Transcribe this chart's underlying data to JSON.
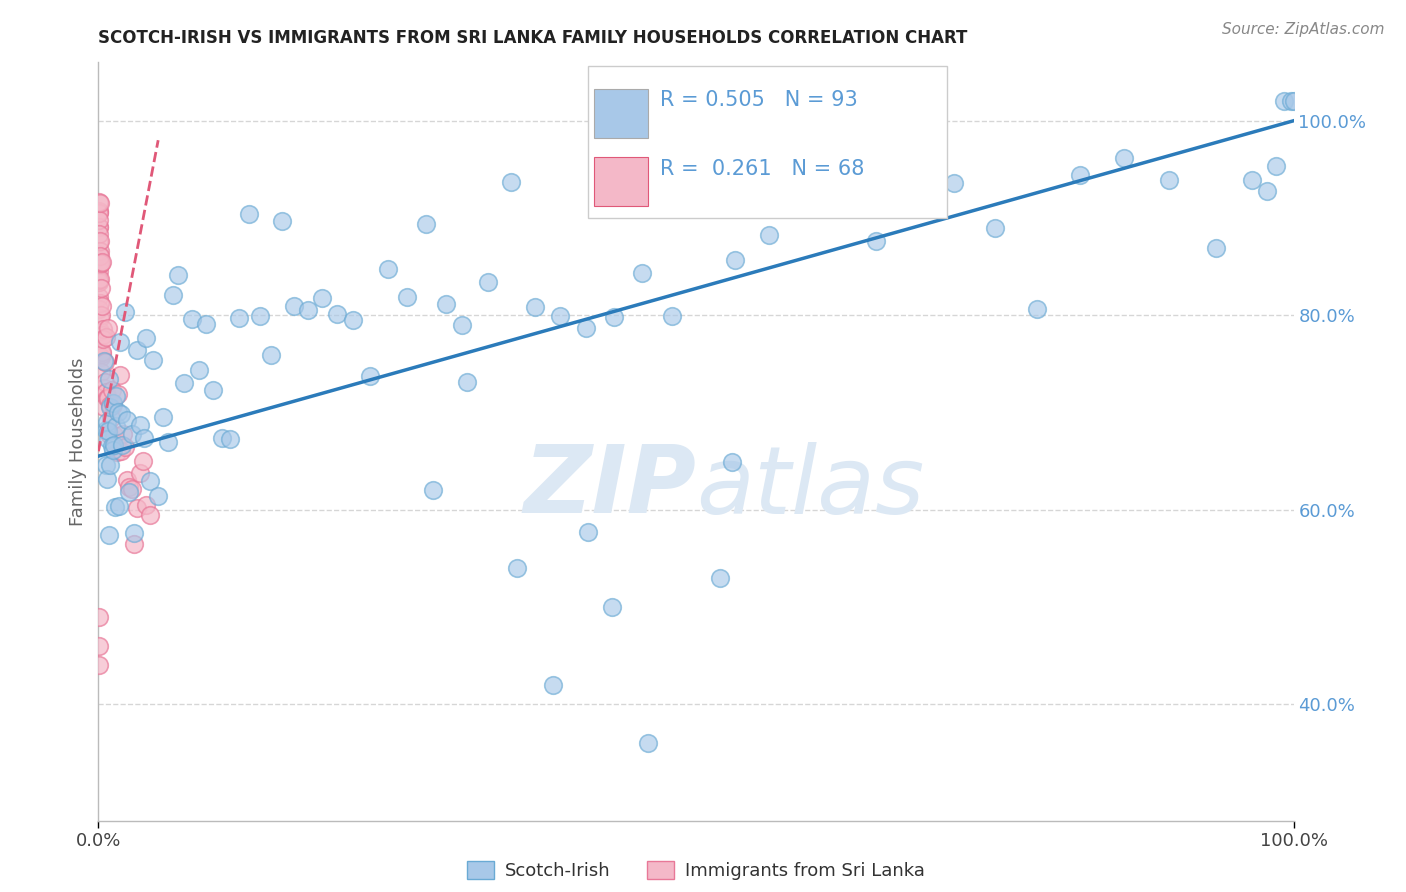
{
  "title": "SCOTCH-IRISH VS IMMIGRANTS FROM SRI LANKA FAMILY HOUSEHOLDS CORRELATION CHART",
  "source": "Source: ZipAtlas.com",
  "ylabel": "Family Households",
  "legend_entries": [
    "Scotch-Irish",
    "Immigrants from Sri Lanka"
  ],
  "legend_r_n": [
    {
      "R": "0.505",
      "N": "93"
    },
    {
      "R": "0.261",
      "N": "68"
    }
  ],
  "blue_color": "#a8c8e8",
  "blue_edge_color": "#6aaad4",
  "blue_line_color": "#2b7bba",
  "pink_color": "#f4b8c8",
  "pink_edge_color": "#e87898",
  "pink_line_color": "#e05878",
  "watermark_color": "#dce8f4",
  "grid_color": "#cccccc",
  "right_tick_color": "#5b9bd5",
  "title_color": "#222222",
  "source_color": "#888888",
  "ylabel_color": "#666666",
  "xtick_color": "#444444",
  "blue_x": [
    0.005,
    0.006,
    0.006,
    0.007,
    0.007,
    0.008,
    0.008,
    0.009,
    0.009,
    0.01,
    0.01,
    0.011,
    0.012,
    0.012,
    0.013,
    0.014,
    0.015,
    0.015,
    0.016,
    0.017,
    0.018,
    0.019,
    0.02,
    0.022,
    0.024,
    0.026,
    0.028,
    0.03,
    0.032,
    0.035,
    0.038,
    0.04,
    0.043,
    0.046,
    0.05,
    0.054,
    0.058,
    0.062,
    0.067,
    0.072,
    0.078,
    0.084,
    0.09,
    0.096,
    0.103,
    0.11,
    0.118,
    0.126,
    0.135,
    0.144,
    0.154,
    0.164,
    0.175,
    0.187,
    0.2,
    0.213,
    0.227,
    0.242,
    0.258,
    0.274,
    0.291,
    0.308,
    0.326,
    0.345,
    0.365,
    0.386,
    0.408,
    0.431,
    0.455,
    0.48,
    0.506,
    0.533,
    0.561,
    0.59,
    0.62,
    0.651,
    0.683,
    0.716,
    0.75,
    0.785,
    0.821,
    0.858,
    0.896,
    0.935,
    0.965,
    0.978,
    0.985,
    0.992,
    0.998,
    1.0,
    0.304,
    0.41,
    0.53
  ],
  "blue_y": [
    0.66,
    0.672,
    0.68,
    0.668,
    0.675,
    0.673,
    0.681,
    0.67,
    0.678,
    0.672,
    0.68,
    0.675,
    0.682,
    0.676,
    0.68,
    0.683,
    0.686,
    0.679,
    0.685,
    0.688,
    0.682,
    0.69,
    0.688,
    0.692,
    0.695,
    0.698,
    0.7,
    0.702,
    0.706,
    0.71,
    0.714,
    0.718,
    0.72,
    0.724,
    0.728,
    0.732,
    0.736,
    0.74,
    0.744,
    0.748,
    0.75,
    0.754,
    0.76,
    0.764,
    0.768,
    0.772,
    0.776,
    0.78,
    0.784,
    0.788,
    0.792,
    0.796,
    0.8,
    0.804,
    0.808,
    0.812,
    0.816,
    0.82,
    0.824,
    0.828,
    0.832,
    0.836,
    0.84,
    0.844,
    0.83,
    0.848,
    0.852,
    0.856,
    0.86,
    0.864,
    0.868,
    0.872,
    0.876,
    0.88,
    0.884,
    0.888,
    0.892,
    0.896,
    0.9,
    0.904,
    0.908,
    0.912,
    0.916,
    0.92,
    0.95,
    0.96,
    0.97,
    0.98,
    0.99,
    1.0,
    0.76,
    0.54,
    0.65
  ],
  "pink_x": [
    0.0003,
    0.0003,
    0.0004,
    0.0004,
    0.0004,
    0.0005,
    0.0005,
    0.0005,
    0.0006,
    0.0006,
    0.0007,
    0.0007,
    0.0008,
    0.0008,
    0.0009,
    0.0009,
    0.001,
    0.001,
    0.0011,
    0.0012,
    0.0013,
    0.0014,
    0.0015,
    0.0016,
    0.0017,
    0.0018,
    0.0019,
    0.002,
    0.0022,
    0.0024,
    0.0026,
    0.0028,
    0.003,
    0.0033,
    0.0036,
    0.0039,
    0.0042,
    0.0045,
    0.0049,
    0.0053,
    0.0057,
    0.0062,
    0.0067,
    0.0072,
    0.0078,
    0.0084,
    0.0091,
    0.0098,
    0.0106,
    0.0114,
    0.0123,
    0.0133,
    0.0143,
    0.0154,
    0.0166,
    0.0179,
    0.0193,
    0.0208,
    0.0224,
    0.0241,
    0.026,
    0.028,
    0.0301,
    0.0324,
    0.0348,
    0.0374,
    0.0402,
    0.0432
  ],
  "pink_y": [
    0.87,
    0.88,
    0.865,
    0.875,
    0.86,
    0.872,
    0.858,
    0.868,
    0.865,
    0.855,
    0.862,
    0.85,
    0.856,
    0.845,
    0.852,
    0.842,
    0.848,
    0.84,
    0.845,
    0.838,
    0.832,
    0.835,
    0.828,
    0.822,
    0.818,
    0.82,
    0.814,
    0.81,
    0.805,
    0.798,
    0.792,
    0.788,
    0.782,
    0.778,
    0.772,
    0.768,
    0.762,
    0.758,
    0.752,
    0.748,
    0.742,
    0.738,
    0.732,
    0.728,
    0.722,
    0.718,
    0.712,
    0.708,
    0.702,
    0.698,
    0.692,
    0.688,
    0.682,
    0.678,
    0.672,
    0.668,
    0.662,
    0.658,
    0.652,
    0.648,
    0.642,
    0.638,
    0.632,
    0.628,
    0.622,
    0.618,
    0.612,
    0.608
  ],
  "xlim": [
    0.0,
    1.0
  ],
  "ylim": [
    0.28,
    1.06
  ],
  "yticks": [
    0.4,
    0.6,
    0.8,
    1.0
  ],
  "ytick_labels": [
    "40.0%",
    "60.0%",
    "80.0%",
    "100.0%"
  ]
}
